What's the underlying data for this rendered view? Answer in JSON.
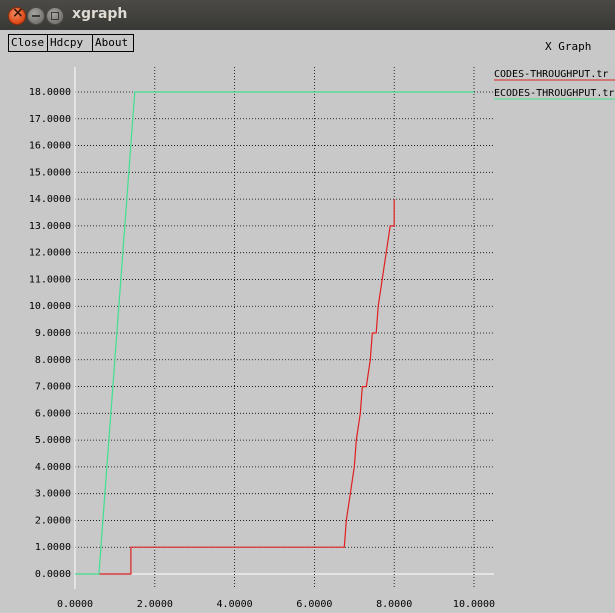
{
  "window": {
    "title": "xgraph"
  },
  "toolbar": {
    "close_label": "Close",
    "hdcpy_label": "Hdcpy",
    "about_label": "About"
  },
  "graph": {
    "title": "X Graph"
  },
  "colors": {
    "series1": "#e02020",
    "series2": "#40e090",
    "background": "#c8c8c8"
  },
  "chart_data": {
    "type": "line",
    "title": "X Graph",
    "xlim": [
      0,
      10
    ],
    "ylim": [
      0,
      18
    ],
    "grid": true,
    "legend_position": "top-right",
    "x_ticks": [
      "0.0000",
      "2.0000",
      "4.0000",
      "6.0000",
      "8.0000",
      "10.0000"
    ],
    "y_ticks": [
      "0.0000",
      "1.0000",
      "2.0000",
      "3.0000",
      "4.0000",
      "5.0000",
      "6.0000",
      "7.0000",
      "8.0000",
      "9.0000",
      "10.0000",
      "11.0000",
      "12.0000",
      "13.0000",
      "14.0000",
      "15.0000",
      "16.0000",
      "17.0000",
      "18.0000"
    ],
    "series": [
      {
        "name": "CODES-THROUGHPUT.tr",
        "points": [
          [
            0.6,
            0
          ],
          [
            1.4,
            0
          ],
          [
            1.4,
            1
          ],
          [
            6.6,
            1
          ],
          [
            6.75,
            1
          ],
          [
            6.8,
            2
          ],
          [
            6.9,
            3
          ],
          [
            7.0,
            4
          ],
          [
            7.05,
            5
          ],
          [
            7.15,
            6
          ],
          [
            7.2,
            7
          ],
          [
            7.3,
            7
          ],
          [
            7.4,
            8
          ],
          [
            7.45,
            9
          ],
          [
            7.55,
            9
          ],
          [
            7.6,
            10
          ],
          [
            7.7,
            11
          ],
          [
            7.8,
            12
          ],
          [
            7.9,
            13
          ],
          [
            8.0,
            13
          ],
          [
            8.0,
            14
          ]
        ]
      },
      {
        "name": "ECODES-THROUGHPUT.tr",
        "points": [
          [
            0,
            0
          ],
          [
            0.6,
            0
          ],
          [
            1.5,
            18
          ],
          [
            10,
            18
          ]
        ]
      }
    ]
  }
}
